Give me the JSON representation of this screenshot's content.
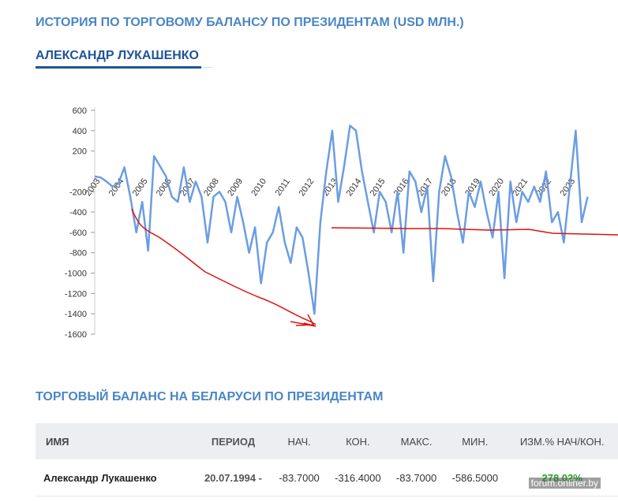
{
  "header": {
    "title": "ИСТОРИЯ ПО ТОРГОВОМУ БАЛАНСУ ПО ПРЕЗИДЕНТАМ (USD МЛН.)",
    "subtitle": "АЛЕКСАНДР ЛУКАШЕНКО"
  },
  "chart_data": {
    "type": "line",
    "color": "#6b9de2",
    "x": [
      2003,
      2003.25,
      2003.5,
      2003.75,
      2004,
      2004.25,
      2004.5,
      2004.75,
      2005,
      2005.25,
      2005.5,
      2005.75,
      2006,
      2006.25,
      2006.5,
      2006.75,
      2007,
      2007.25,
      2007.5,
      2007.75,
      2008,
      2008.25,
      2008.5,
      2008.75,
      2009,
      2009.25,
      2009.5,
      2009.75,
      2010,
      2010.25,
      2010.5,
      2010.75,
      2011,
      2011.25,
      2011.5,
      2011.75,
      2012,
      2012.25,
      2012.5,
      2012.75,
      2013,
      2013.25,
      2013.5,
      2013.75,
      2014,
      2014.25,
      2014.5,
      2014.75,
      2015,
      2015.25,
      2015.5,
      2015.75,
      2016,
      2016.25,
      2016.5,
      2016.75,
      2017,
      2017.25,
      2017.5,
      2017.75,
      2018,
      2018.25,
      2018.5,
      2018.75,
      2019,
      2019.25,
      2019.5,
      2019.75,
      2020,
      2020.25,
      2020.5,
      2020.75,
      2021,
      2021.25,
      2021.5,
      2021.75,
      2022,
      2022.25,
      2022.5,
      2022.75,
      2023,
      2023.25,
      2023.5,
      2023.75
    ],
    "values": [
      -50,
      -60,
      -100,
      -150,
      -120,
      40,
      -250,
      -600,
      -300,
      -780,
      150,
      50,
      -50,
      -250,
      -300,
      40,
      -300,
      -100,
      -250,
      -700,
      -250,
      -200,
      -300,
      -600,
      -250,
      -500,
      -800,
      -550,
      -1100,
      -700,
      -600,
      -350,
      -700,
      -900,
      -550,
      -650,
      -1000,
      -1400,
      -500,
      0,
      400,
      -300,
      50,
      450,
      400,
      0,
      -300,
      -600,
      -200,
      -300,
      -600,
      -200,
      -800,
      0,
      -100,
      -400,
      -150,
      -1080,
      -200,
      150,
      -50,
      -400,
      -700,
      -200,
      -350,
      -100,
      -400,
      -650,
      -200,
      -1050,
      -100,
      -500,
      -200,
      -300,
      -150,
      -300,
      0,
      -500,
      -400,
      -700,
      -150,
      400,
      -500,
      -250
    ],
    "xlim": [
      2003,
      2024
    ],
    "xticks": [
      2003,
      2004,
      2005,
      2006,
      2007,
      2008,
      2009,
      2010,
      2011,
      2012,
      2013,
      2014,
      2015,
      2016,
      2017,
      2018,
      2019,
      2020,
      2021,
      2022,
      2023
    ],
    "ylim": [
      -1600,
      600
    ],
    "yticks": [
      600,
      400,
      200,
      -200,
      -400,
      -600,
      -800,
      -1000,
      -1200,
      -1400,
      -1600
    ]
  },
  "section_title": "ТОРГОВЫЙ БАЛАНС НА БЕЛАРУСИ ПО ПРЕЗИДЕНТАМ",
  "table": {
    "headers": [
      "ИМЯ",
      "ПЕРИОД",
      "НАЧ.",
      "КОН.",
      "МАКС.",
      "МИН.",
      "ИЗМ.% НАЧ/КОН."
    ],
    "rows": [
      [
        "Александр Лукашенко",
        "20.07.1994 -",
        "-83.7000",
        "-316.4000",
        "-83.7000",
        "-586.5000",
        "278.02%"
      ]
    ]
  },
  "watermark": "forum.onliner.by"
}
